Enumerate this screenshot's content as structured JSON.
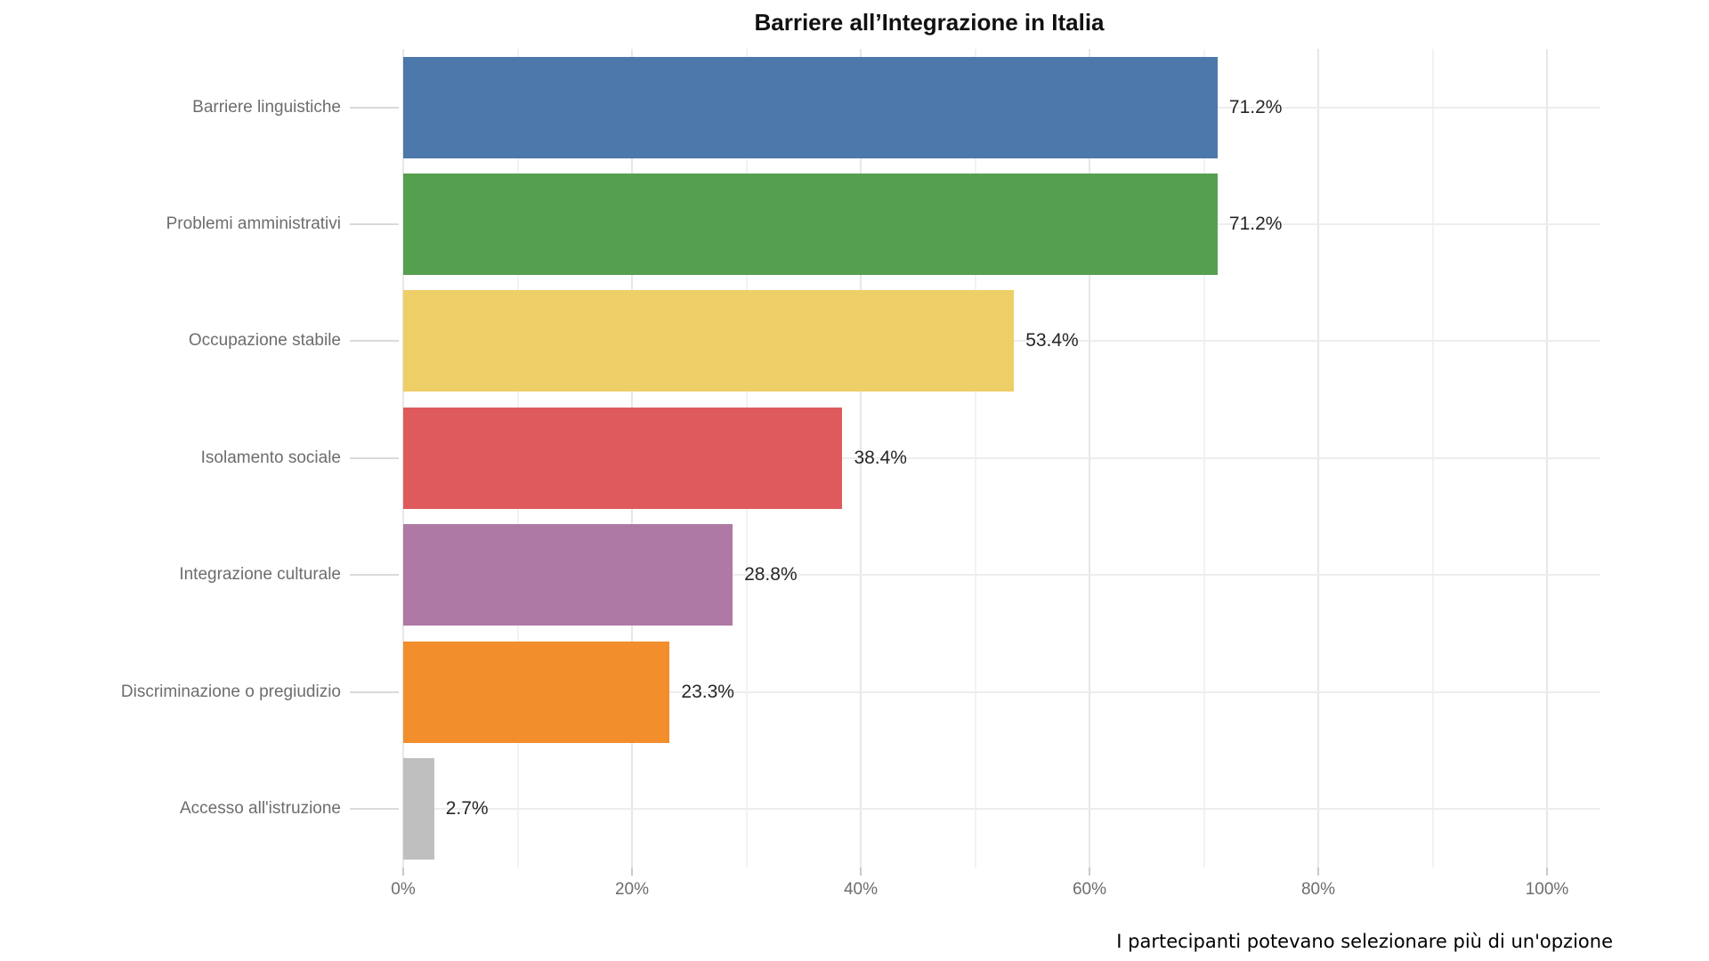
{
  "title": "Barriere all’Integrazione in Italia",
  "footnote": "I partecipanti potevano selezionare più di un'opzione",
  "chart_data": {
    "type": "bar",
    "orientation": "horizontal",
    "title": "Barriere all’Integrazione in Italia",
    "categories": [
      "Barriere linguistiche",
      "Problemi amministrativi",
      "Occupazione stabile",
      "Isolamento sociale",
      "Integrazione culturale",
      "Discriminazione o pregiudizio",
      "Accesso all'istruzione"
    ],
    "values": [
      71.2,
      71.2,
      53.4,
      38.4,
      28.8,
      23.3,
      2.7
    ],
    "value_labels": [
      "71.2%",
      "71.2%",
      "53.4%",
      "38.4%",
      "28.8%",
      "23.3%",
      "2.7%"
    ],
    "bar_colors": [
      "#4d78ab",
      "#55a04f",
      "#eece66",
      "#df5a5c",
      "#ae7aa3",
      "#f28e2c",
      "#bfbfbf"
    ],
    "x_ticks": [
      "0%",
      "20%",
      "40%",
      "60%",
      "80%",
      "100%"
    ],
    "xlim": [
      0,
      100
    ],
    "xlabel": "",
    "ylabel": "",
    "legend": "none",
    "grid": "vertical major every 20% and minor every 10%, horizontal line per category",
    "annotation": "I partecipanti potevano selezionare più di un'opzione"
  },
  "colors": {
    "background": "#ffffff",
    "title_text": "#111111",
    "axis_text": "#6d6d6d",
    "value_text": "#262626",
    "gridline_major": "#e7e7e7",
    "gridline_minor": "#f2f2f2",
    "tick_mark": "#c9c9c9"
  }
}
